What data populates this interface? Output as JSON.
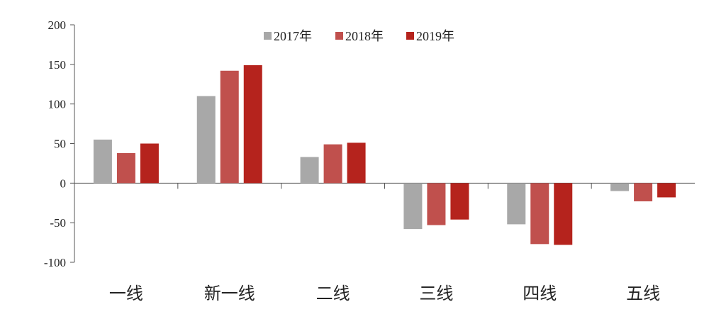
{
  "chart_data": {
    "type": "bar",
    "categories": [
      "一线",
      "新一线",
      "二线",
      "三线",
      "四线",
      "五线"
    ],
    "series": [
      {
        "name": "2017年",
        "color": "#a8a8a8",
        "values": [
          55,
          110,
          33,
          -58,
          -52,
          -10
        ]
      },
      {
        "name": "2018年",
        "color": "#c0504d",
        "values": [
          38,
          142,
          49,
          -53,
          -77,
          -23
        ]
      },
      {
        "name": "2019年",
        "color": "#b5231d",
        "values": [
          50,
          149,
          51,
          -46,
          -78,
          -18
        ]
      }
    ],
    "yticks": [
      "200",
      "150",
      "100",
      "50",
      "0",
      "-50",
      "-100"
    ],
    "ytick_values": [
      200,
      150,
      100,
      50,
      0,
      -50,
      -100
    ],
    "ylim": [
      -100,
      200
    ],
    "legend_position": "top",
    "grid": false
  }
}
